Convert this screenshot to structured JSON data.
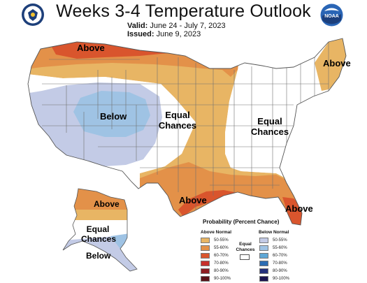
{
  "title": "Weeks 3-4 Temperature Outlook",
  "valid_label": "Valid:",
  "valid_value": "June 24 - July 7, 2023",
  "issued_label": "Issued:",
  "issued_value": "June 9, 2023",
  "logos": {
    "left": "doc-seal-icon",
    "right": "noaa-logo-icon"
  },
  "map_labels": {
    "above_north": "Above",
    "above_northeast": "Above",
    "below_west": "Below",
    "equal_chances_central_1": "Equal",
    "equal_chances_central_2": "Chances",
    "equal_chances_east_1": "Equal",
    "equal_chances_east_2": "Chances",
    "above_gulf": "Above",
    "above_florida": "Above",
    "above_alaska": "Above",
    "equal_chances_alaska_1": "Equal",
    "equal_chances_alaska_2": "Chances",
    "below_alaska": "Below"
  },
  "legend": {
    "title": "Probability (Percent Chance)",
    "above_header": "Above Normal",
    "below_header": "Below Normal",
    "equal_chances_1": "Equal",
    "equal_chances_2": "Chances",
    "above_rows": [
      {
        "label": "50-55%",
        "color": "#e8b564"
      },
      {
        "label": "55-60%",
        "color": "#e39149"
      },
      {
        "label": "60-70%",
        "color": "#d9552d"
      },
      {
        "label": "70-80%",
        "color": "#c8302b"
      },
      {
        "label": "80-90%",
        "color": "#8e1d22"
      },
      {
        "label": "90-100%",
        "color": "#5a1218"
      }
    ],
    "below_rows": [
      {
        "label": "50-55%",
        "color": "#c3cbe6"
      },
      {
        "label": "55-60%",
        "color": "#9fc3e4"
      },
      {
        "label": "60-70%",
        "color": "#5fa7d6"
      },
      {
        "label": "70-80%",
        "color": "#2b6cb3"
      },
      {
        "label": "80-90%",
        "color": "#24307c"
      },
      {
        "label": "90-100%",
        "color": "#1a1450"
      }
    ]
  },
  "colors": {
    "above_50_55": "#e8b564",
    "above_55_60": "#e39149",
    "above_60_70": "#d9552d",
    "below_50_55": "#c3cbe6",
    "below_55_60": "#9fc3e4",
    "equal_chances": "#ffffff"
  }
}
